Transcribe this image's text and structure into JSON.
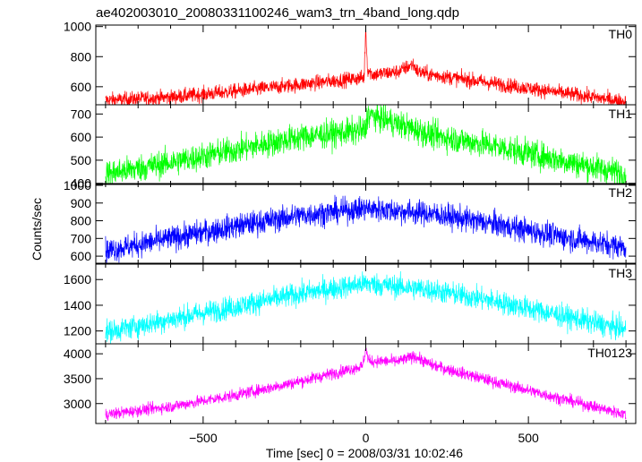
{
  "chart_data": {
    "type": "line",
    "title": "ae402003010_20080331100246_wam3_trn_4band_long.qdp",
    "xlabel": "Time [sec] 0 = 2008/03/31 10:02:46",
    "ylabel": "Counts/sec",
    "xlim": [
      -830,
      830
    ],
    "x_ticks": [
      -500,
      0,
      500
    ],
    "x_tick_labels": [
      "−500",
      "0",
      "500"
    ],
    "grid": false,
    "panels": [
      {
        "name": "TH0",
        "color": "#ff0000",
        "ylim": [
          480,
          1010
        ],
        "yticks": [
          600,
          800,
          1000
        ],
        "x": [
          -800,
          -600,
          -400,
          -200,
          -50,
          -5,
          0,
          5,
          20,
          100,
          145,
          160,
          200,
          400,
          600,
          800
        ],
        "y": [
          510,
          530,
          570,
          615,
          650,
          660,
          1000,
          720,
          680,
          700,
          750,
          700,
          680,
          620,
          560,
          500
        ],
        "noise": 25
      },
      {
        "name": "TH1",
        "color": "#00ff00",
        "ylim": [
          395,
          740
        ],
        "yticks": [
          400,
          500,
          600,
          700
        ],
        "x": [
          -800,
          -600,
          -400,
          -200,
          0,
          5,
          200,
          400,
          600,
          800
        ],
        "y": [
          440,
          490,
          545,
          600,
          630,
          700,
          610,
          560,
          500,
          440
        ],
        "noise": 30
      },
      {
        "name": "TH2",
        "color": "#0000ff",
        "ylim": [
          560,
          1010
        ],
        "yticks": [
          600,
          700,
          800,
          900,
          1000
        ],
        "x": [
          -800,
          -600,
          -400,
          -200,
          0,
          200,
          400,
          600,
          800
        ],
        "y": [
          630,
          700,
          770,
          830,
          870,
          840,
          780,
          710,
          650
        ],
        "noise": 35
      },
      {
        "name": "TH3",
        "color": "#00ffff",
        "ylim": [
          1100,
          1720
        ],
        "yticks": [
          1200,
          1400,
          1600
        ],
        "x": [
          -800,
          -600,
          -400,
          -200,
          0,
          200,
          400,
          600,
          800
        ],
        "y": [
          1190,
          1290,
          1390,
          1490,
          1570,
          1520,
          1430,
          1320,
          1210
        ],
        "noise": 45
      },
      {
        "name": "TH0123",
        "color": "#ff00ff",
        "ylim": [
          2600,
          4200
        ],
        "yticks": [
          3000,
          3500,
          4000
        ],
        "x": [
          -800,
          -600,
          -400,
          -200,
          -10,
          0,
          10,
          100,
          150,
          200,
          400,
          600,
          800
        ],
        "y": [
          2780,
          2940,
          3170,
          3450,
          3750,
          4100,
          3850,
          3850,
          3950,
          3780,
          3430,
          3100,
          2780
        ],
        "noise": 60
      }
    ]
  }
}
